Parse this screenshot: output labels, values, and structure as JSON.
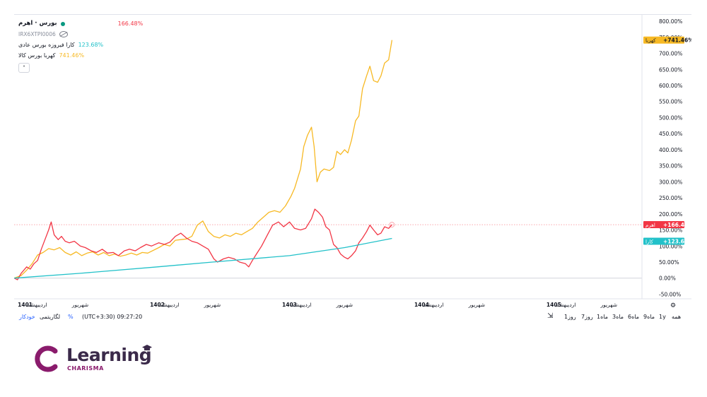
{
  "legend": {
    "main_symbol": "بورس · اهرم",
    "main_change": "166.48%",
    "main_code": "IRX6XTPI0006",
    "compare": [
      {
        "label": "کارا فیروزه بورس عادی",
        "change": "123.68%"
      },
      {
        "label": "کهربا بورس کالا",
        "change": "741.46%"
      }
    ],
    "collapse_label": "˄"
  },
  "colors": {
    "ahrom": "#f23645",
    "kahroba": "#f7b924",
    "kara": "#22c1c9",
    "grid": "#f0f3fa",
    "axis_text": "#131722"
  },
  "chart_data": {
    "type": "line",
    "y_unit": "%",
    "ylim": [
      -60,
      820
    ],
    "y_ticks": [
      "-50.00%",
      "0.00%",
      "50.00%",
      "100.00%",
      "150.00%",
      "200.00%",
      "250.00%",
      "300.00%",
      "350.00%",
      "400.00%",
      "450.00%",
      "500.00%",
      "550.00%",
      "600.00%",
      "650.00%",
      "700.00%",
      "750.00%",
      "800.00%"
    ],
    "x_range": [
      "1400/12",
      "1405/09"
    ],
    "x_ticks": [
      {
        "label": "1401",
        "date": "1401/01"
      },
      {
        "label": "اردیبهشت",
        "date": "1401/02"
      },
      {
        "label": "شهریور",
        "date": "1401/06"
      },
      {
        "label": "1402",
        "date": "1402/01"
      },
      {
        "label": "اردیبهشت",
        "date": "1402/02"
      },
      {
        "label": "شهریور",
        "date": "1402/06"
      },
      {
        "label": "1403",
        "date": "1403/01"
      },
      {
        "label": "اردیبهشت",
        "date": "1403/02"
      },
      {
        "label": "شهریور",
        "date": "1403/06"
      },
      {
        "label": "1404",
        "date": "1404/01"
      },
      {
        "label": "اردیبهشت",
        "date": "1404/02"
      },
      {
        "label": "شهریور",
        "date": "1404/06"
      },
      {
        "label": "1405",
        "date": "1405/01"
      },
      {
        "label": "اردیبهشت",
        "date": "1405/02"
      },
      {
        "label": "شهریور",
        "date": "1405/06"
      }
    ],
    "series": [
      {
        "name": "کهربا",
        "color_key": "kahroba",
        "last_label": "+741.46%",
        "points": [
          [
            "1400/12/01",
            0
          ],
          [
            "1400/12/20",
            8
          ],
          [
            "1401/01/05",
            25
          ],
          [
            "1401/01/20",
            45
          ],
          [
            "1401/02/05",
            72
          ],
          [
            "1401/02/20",
            80
          ],
          [
            "1401/03/05",
            92
          ],
          [
            "1401/03/20",
            88
          ],
          [
            "1401/04/05",
            95
          ],
          [
            "1401/04/20",
            80
          ],
          [
            "1401/05/05",
            72
          ],
          [
            "1401/05/20",
            82
          ],
          [
            "1401/06/05",
            70
          ],
          [
            "1401/06/20",
            78
          ],
          [
            "1401/07/05",
            82
          ],
          [
            "1401/07/20",
            72
          ],
          [
            "1401/08/05",
            80
          ],
          [
            "1401/08/20",
            70
          ],
          [
            "1401/09/05",
            75
          ],
          [
            "1401/09/20",
            68
          ],
          [
            "1401/10/05",
            72
          ],
          [
            "1401/10/20",
            78
          ],
          [
            "1401/11/05",
            72
          ],
          [
            "1401/11/20",
            80
          ],
          [
            "1401/12/05",
            78
          ],
          [
            "1402/01/05",
            95
          ],
          [
            "1402/01/20",
            105
          ],
          [
            "1402/02/05",
            100
          ],
          [
            "1402/02/20",
            118
          ],
          [
            "1402/03/05",
            120
          ],
          [
            "1402/03/20",
            122
          ],
          [
            "1402/04/05",
            130
          ],
          [
            "1402/04/20",
            165
          ],
          [
            "1402/05/05",
            178
          ],
          [
            "1402/05/20",
            145
          ],
          [
            "1402/06/05",
            130
          ],
          [
            "1402/06/20",
            125
          ],
          [
            "1402/07/05",
            135
          ],
          [
            "1402/07/20",
            130
          ],
          [
            "1402/08/05",
            140
          ],
          [
            "1402/08/20",
            135
          ],
          [
            "1402/09/05",
            145
          ],
          [
            "1402/09/20",
            155
          ],
          [
            "1402/10/05",
            175
          ],
          [
            "1402/10/20",
            190
          ],
          [
            "1402/11/05",
            205
          ],
          [
            "1402/11/20",
            210
          ],
          [
            "1402/12/05",
            205
          ],
          [
            "1402/12/20",
            225
          ],
          [
            "1403/01/05",
            255
          ],
          [
            "1403/01/15",
            280
          ],
          [
            "1403/02/01",
            340
          ],
          [
            "1403/02/10",
            410
          ],
          [
            "1403/02/20",
            445
          ],
          [
            "1403/03/01",
            470
          ],
          [
            "1403/03/08",
            410
          ],
          [
            "1403/03/16",
            300
          ],
          [
            "1403/03/25",
            330
          ],
          [
            "1403/04/05",
            340
          ],
          [
            "1403/04/20",
            335
          ],
          [
            "1403/05/01",
            345
          ],
          [
            "1403/05/10",
            395
          ],
          [
            "1403/05/20",
            385
          ],
          [
            "1403/06/01",
            400
          ],
          [
            "1403/06/10",
            390
          ],
          [
            "1403/06/20",
            430
          ],
          [
            "1403/07/01",
            490
          ],
          [
            "1403/07/10",
            505
          ],
          [
            "1403/07/20",
            590
          ],
          [
            "1403/08/01",
            630
          ],
          [
            "1403/08/10",
            660
          ],
          [
            "1403/08/20",
            615
          ],
          [
            "1403/09/01",
            610
          ],
          [
            "1403/09/10",
            630
          ],
          [
            "1403/09/20",
            670
          ],
          [
            "1403/10/01",
            680
          ],
          [
            "1403/10/10",
            741.46
          ]
        ]
      },
      {
        "name": "اهرم",
        "color_key": "ahrom",
        "last_label": "+166.48%",
        "points": [
          [
            "1400/12/01",
            0
          ],
          [
            "1400/12/10",
            -5
          ],
          [
            "1400/12/20",
            15
          ],
          [
            "1401/01/05",
            35
          ],
          [
            "1401/01/15",
            28
          ],
          [
            "1401/01/25",
            45
          ],
          [
            "1401/02/05",
            55
          ],
          [
            "1401/02/15",
            90
          ],
          [
            "1401/02/25",
            120
          ],
          [
            "1401/03/05",
            150
          ],
          [
            "1401/03/12",
            175
          ],
          [
            "1401/03/20",
            135
          ],
          [
            "1401/04/01",
            120
          ],
          [
            "1401/04/10",
            130
          ],
          [
            "1401/04/20",
            115
          ],
          [
            "1401/05/01",
            110
          ],
          [
            "1401/05/15",
            115
          ],
          [
            "1401/06/01",
            100
          ],
          [
            "1401/06/15",
            95
          ],
          [
            "1401/07/01",
            85
          ],
          [
            "1401/07/15",
            80
          ],
          [
            "1401/08/01",
            90
          ],
          [
            "1401/08/15",
            78
          ],
          [
            "1401/09/01",
            80
          ],
          [
            "1401/09/15",
            70
          ],
          [
            "1401/10/01",
            85
          ],
          [
            "1401/10/15",
            90
          ],
          [
            "1401/11/01",
            85
          ],
          [
            "1401/11/15",
            95
          ],
          [
            "1401/12/01",
            105
          ],
          [
            "1401/12/15",
            100
          ],
          [
            "1402/01/05",
            110
          ],
          [
            "1402/01/20",
            105
          ],
          [
            "1402/02/05",
            112
          ],
          [
            "1402/02/20",
            130
          ],
          [
            "1402/03/05",
            140
          ],
          [
            "1402/03/20",
            125
          ],
          [
            "1402/04/05",
            115
          ],
          [
            "1402/04/20",
            110
          ],
          [
            "1402/05/05",
            100
          ],
          [
            "1402/05/20",
            90
          ],
          [
            "1402/06/05",
            60
          ],
          [
            "1402/06/15",
            50
          ],
          [
            "1402/07/01",
            60
          ],
          [
            "1402/07/15",
            65
          ],
          [
            "1402/08/01",
            60
          ],
          [
            "1402/08/15",
            50
          ],
          [
            "1402/09/01",
            45
          ],
          [
            "1402/09/10",
            35
          ],
          [
            "1402/09/20",
            55
          ],
          [
            "1402/10/01",
            75
          ],
          [
            "1402/10/15",
            100
          ],
          [
            "1402/11/01",
            135
          ],
          [
            "1402/11/15",
            165
          ],
          [
            "1402/12/01",
            175
          ],
          [
            "1402/12/15",
            160
          ],
          [
            "1403/01/01",
            175
          ],
          [
            "1403/01/15",
            155
          ],
          [
            "1403/02/01",
            150
          ],
          [
            "1403/02/15",
            155
          ],
          [
            "1403/03/01",
            185
          ],
          [
            "1403/03/10",
            215
          ],
          [
            "1403/03/20",
            205
          ],
          [
            "1403/04/01",
            190
          ],
          [
            "1403/04/10",
            160
          ],
          [
            "1403/04/20",
            150
          ],
          [
            "1403/05/01",
            105
          ],
          [
            "1403/05/10",
            95
          ],
          [
            "1403/05/20",
            75
          ],
          [
            "1403/06/01",
            65
          ],
          [
            "1403/06/10",
            60
          ],
          [
            "1403/06/20",
            70
          ],
          [
            "1403/07/01",
            85
          ],
          [
            "1403/07/10",
            110
          ],
          [
            "1403/07/20",
            125
          ],
          [
            "1403/08/01",
            145
          ],
          [
            "1403/08/10",
            165
          ],
          [
            "1403/08/20",
            150
          ],
          [
            "1403/09/01",
            135
          ],
          [
            "1403/09/10",
            140
          ],
          [
            "1403/09/20",
            160
          ],
          [
            "1403/10/01",
            155
          ],
          [
            "1403/10/10",
            166.48
          ]
        ]
      },
      {
        "name": "کارا",
        "color_key": "kara",
        "last_label": "+123.68%",
        "points": [
          [
            "1400/12/01",
            0
          ],
          [
            "1401/06/01",
            15
          ],
          [
            "1402/01/01",
            35
          ],
          [
            "1402/06/01",
            50
          ],
          [
            "1403/01/01",
            70
          ],
          [
            "1403/06/01",
            95
          ],
          [
            "1403/10/10",
            123.68
          ]
        ]
      }
    ],
    "reference_line": 166.48
  },
  "toolbar": {
    "timezone": "(UTC+3:30) 09:27:20",
    "log_label": "لگاریتمی",
    "percent_label": "%",
    "auto_label": "خودکار",
    "ranges": [
      "همه",
      "1y",
      "9ماه",
      "6ماه",
      "3ماه",
      "1ماه",
      "7روز",
      "1روز"
    ]
  },
  "brand": {
    "name": "Learning",
    "sub": "CHARISMA"
  }
}
